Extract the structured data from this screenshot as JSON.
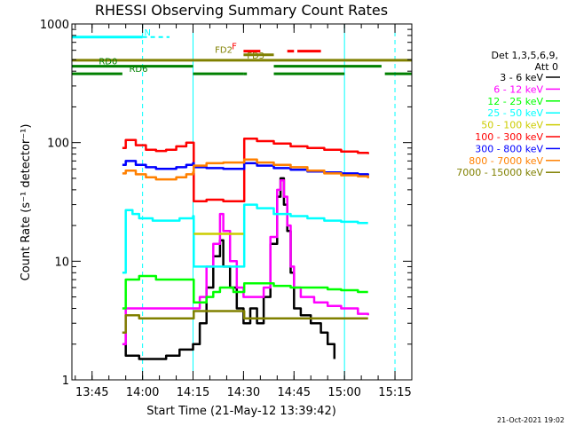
{
  "chart_data": {
    "type": "line",
    "title": "RHESSI Observing Summary Count Rates",
    "xlabel": "Start Time (21-May-12 13:39:42)",
    "ylabel": "Count Rate (s⁻¹ detector⁻¹)",
    "y_scale": "log",
    "ylim": [
      1,
      1000
    ],
    "xlim_minutes_after_1339": [
      0,
      101
    ],
    "x_ticks": [
      {
        "label": "13:45",
        "min": 6
      },
      {
        "label": "14:00",
        "min": 21
      },
      {
        "label": "14:15",
        "min": 36
      },
      {
        "label": "14:30",
        "min": 51
      },
      {
        "label": "14:45",
        "min": 66
      },
      {
        "label": "15:00",
        "min": 81
      },
      {
        "label": "15:15",
        "min": 96
      }
    ],
    "y_ticks": [
      {
        "label": "1",
        "value": 1
      },
      {
        "label": "10",
        "value": 10
      },
      {
        "label": "100",
        "value": 100
      },
      {
        "label": "1000",
        "value": 1000
      }
    ],
    "legend_title": [
      "Det 1,3,5,6,9,",
      "Att 0"
    ],
    "legend_placement": "right",
    "series": [
      {
        "name": "3 - 6 keV",
        "color": "#000000",
        "points": [
          [
            15,
            2.5
          ],
          [
            16,
            1.6
          ],
          [
            20,
            1.5
          ],
          [
            24,
            1.5
          ],
          [
            28,
            1.6
          ],
          [
            32,
            1.8
          ],
          [
            36,
            2.0
          ],
          [
            38,
            3
          ],
          [
            40,
            6
          ],
          [
            42,
            11
          ],
          [
            44,
            15
          ],
          [
            45,
            9
          ],
          [
            47,
            6
          ],
          [
            49,
            4
          ],
          [
            51,
            3
          ],
          [
            53,
            4
          ],
          [
            55,
            3
          ],
          [
            57,
            5
          ],
          [
            59,
            14
          ],
          [
            61,
            35
          ],
          [
            62,
            50
          ],
          [
            63,
            30
          ],
          [
            64,
            18
          ],
          [
            65,
            8
          ],
          [
            66,
            4
          ],
          [
            68,
            3.5
          ],
          [
            71,
            3
          ],
          [
            74,
            2.5
          ],
          [
            76,
            2
          ],
          [
            78,
            1.5
          ]
        ]
      },
      {
        "name": "6 - 12 keV",
        "color": "#ff00ff",
        "points": [
          [
            15,
            2.0
          ],
          [
            16,
            4.0
          ],
          [
            20,
            4.0
          ],
          [
            25,
            4.0
          ],
          [
            30,
            4.0
          ],
          [
            34,
            4.0
          ],
          [
            36,
            4.0
          ],
          [
            38,
            5
          ],
          [
            40,
            9
          ],
          [
            42,
            14
          ],
          [
            44,
            25
          ],
          [
            45,
            18
          ],
          [
            47,
            10
          ],
          [
            49,
            6
          ],
          [
            51,
            5
          ],
          [
            53,
            5
          ],
          [
            55,
            5
          ],
          [
            57,
            6
          ],
          [
            59,
            16
          ],
          [
            61,
            40
          ],
          [
            62,
            48
          ],
          [
            63,
            35
          ],
          [
            64,
            20
          ],
          [
            65,
            9
          ],
          [
            66,
            6
          ],
          [
            68,
            5
          ],
          [
            72,
            4.5
          ],
          [
            76,
            4.2
          ],
          [
            80,
            4.0
          ],
          [
            85,
            3.6
          ],
          [
            88,
            3.5
          ]
        ]
      },
      {
        "name": "12 - 25 keV",
        "color": "#00ff00",
        "points": [
          [
            15,
            4.0
          ],
          [
            16,
            7.0
          ],
          [
            20,
            7.5
          ],
          [
            25,
            7.0
          ],
          [
            30,
            7.0
          ],
          [
            36,
            7.0
          ],
          [
            36.2,
            4.5
          ],
          [
            40,
            5
          ],
          [
            42,
            5.5
          ],
          [
            44,
            6.0
          ],
          [
            48,
            5.5
          ],
          [
            51,
            5.5
          ],
          [
            51.2,
            6.5
          ],
          [
            55,
            6.5
          ],
          [
            60,
            6.2
          ],
          [
            65,
            6
          ],
          [
            70,
            6
          ],
          [
            76,
            5.8
          ],
          [
            80,
            5.7
          ],
          [
            85,
            5.5
          ],
          [
            88,
            5.5
          ]
        ]
      },
      {
        "name": "25 - 50 keV",
        "color": "#00ffff",
        "points": [
          [
            15,
            8
          ],
          [
            16,
            27
          ],
          [
            18,
            25
          ],
          [
            20,
            23
          ],
          [
            24,
            22
          ],
          [
            28,
            22
          ],
          [
            32,
            23
          ],
          [
            36,
            24
          ],
          [
            36.2,
            9
          ],
          [
            42,
            9
          ],
          [
            48,
            9
          ],
          [
            51,
            9
          ],
          [
            51.2,
            30
          ],
          [
            55,
            28
          ],
          [
            60,
            25
          ],
          [
            65,
            24
          ],
          [
            70,
            23
          ],
          [
            75,
            22
          ],
          [
            80,
            21.5
          ],
          [
            85,
            21
          ],
          [
            88,
            21
          ]
        ]
      },
      {
        "name": "50 - 100 keV",
        "color": "#cccc00",
        "points": [
          [
            36.2,
            17
          ],
          [
            40,
            17
          ],
          [
            45,
            17
          ],
          [
            51,
            17
          ]
        ]
      },
      {
        "name": "100 - 300 keV",
        "color": "#ff0000",
        "points": [
          [
            15,
            90
          ],
          [
            16,
            105
          ],
          [
            19,
            95
          ],
          [
            22,
            87
          ],
          [
            25,
            85
          ],
          [
            28,
            87
          ],
          [
            31,
            93
          ],
          [
            34,
            100
          ],
          [
            36,
            100
          ],
          [
            36.2,
            32
          ],
          [
            40,
            33
          ],
          [
            45,
            32
          ],
          [
            51,
            32
          ],
          [
            51.2,
            108
          ],
          [
            55,
            103
          ],
          [
            60,
            98
          ],
          [
            65,
            93
          ],
          [
            70,
            90
          ],
          [
            75,
            87
          ],
          [
            80,
            84
          ],
          [
            85,
            82
          ],
          [
            88,
            80
          ]
        ]
      },
      {
        "name": "300 - 800 keV",
        "color": "#0000ff",
        "points": [
          [
            15,
            65
          ],
          [
            16,
            70
          ],
          [
            19,
            65
          ],
          [
            22,
            62
          ],
          [
            25,
            60
          ],
          [
            28,
            60
          ],
          [
            31,
            62
          ],
          [
            34,
            65
          ],
          [
            36,
            67
          ],
          [
            36.2,
            62
          ],
          [
            40,
            61
          ],
          [
            45,
            60
          ],
          [
            51,
            60
          ],
          [
            51.2,
            67
          ],
          [
            55,
            64
          ],
          [
            60,
            61
          ],
          [
            65,
            59
          ],
          [
            70,
            57
          ],
          [
            75,
            56
          ],
          [
            80,
            55
          ],
          [
            85,
            54
          ],
          [
            88,
            53
          ]
        ]
      },
      {
        "name": "800 - 7000 keV",
        "color": "#ff8000",
        "points": [
          [
            15,
            55
          ],
          [
            16,
            58
          ],
          [
            19,
            54
          ],
          [
            22,
            51
          ],
          [
            25,
            49
          ],
          [
            28,
            49
          ],
          [
            31,
            51
          ],
          [
            34,
            54
          ],
          [
            36,
            56
          ],
          [
            36.2,
            64
          ],
          [
            40,
            67
          ],
          [
            45,
            68
          ],
          [
            51,
            68
          ],
          [
            51.2,
            72
          ],
          [
            55,
            68
          ],
          [
            60,
            65
          ],
          [
            65,
            62
          ],
          [
            70,
            58
          ],
          [
            75,
            55
          ],
          [
            80,
            53
          ],
          [
            85,
            52
          ],
          [
            88,
            50
          ]
        ]
      },
      {
        "name": "7000 - 15000 keV",
        "color": "#808000",
        "points": [
          [
            15,
            2.5
          ],
          [
            16,
            3.5
          ],
          [
            20,
            3.3
          ],
          [
            25,
            3.3
          ],
          [
            30,
            3.3
          ],
          [
            36,
            3.3
          ],
          [
            36.2,
            3.8
          ],
          [
            42,
            3.8
          ],
          [
            51,
            3.8
          ],
          [
            51.2,
            3.3
          ],
          [
            60,
            3.3
          ],
          [
            70,
            3.3
          ],
          [
            80,
            3.3
          ],
          [
            88,
            3.3
          ]
        ]
      }
    ],
    "flag_bars": [
      {
        "label": "N",
        "color": "#00ffff",
        "label_min": 21.5,
        "level": 775,
        "segments": [
          [
            0,
            21
          ]
        ],
        "dashed_line": [
          [
            21,
            29
          ]
        ]
      },
      {
        "label": "F",
        "color": "#ff0000",
        "label_min": 47.5,
        "level": 590,
        "segments": [
          [
            51,
            56
          ],
          [
            64,
            66
          ],
          [
            67,
            74
          ]
        ]
      },
      {
        "label": "FD2",
        "color": "#808000",
        "label_min": 42.5,
        "level": 550,
        "segments": [
          [
            51,
            60
          ]
        ]
      },
      {
        "label": "FD3",
        "color": "#808000",
        "label_min": 52,
        "level": 495,
        "segments": [
          [
            0,
            101
          ]
        ]
      },
      {
        "label": "RD0",
        "color": "#008000",
        "label_min": 8,
        "level": 440,
        "segments": [
          [
            0,
            36
          ],
          [
            60,
            92
          ]
        ]
      },
      {
        "label": "RD6",
        "color": "#008000",
        "label_min": 17,
        "level": 380,
        "segments": [
          [
            0,
            15
          ],
          [
            36,
            51
          ],
          [
            51,
            52
          ],
          [
            60,
            81
          ],
          [
            93,
            101
          ]
        ]
      }
    ],
    "vertical_lines": [
      {
        "min": 0,
        "color": "#00ffff",
        "style": "solid"
      },
      {
        "min": 21,
        "color": "#00ffff",
        "style": "dashed"
      },
      {
        "min": 36,
        "color": "#00ffff",
        "style": "solid"
      },
      {
        "min": 81,
        "color": "#00ffff",
        "style": "solid"
      },
      {
        "min": 96,
        "color": "#00ffff",
        "style": "dashed"
      }
    ],
    "footer_timestamp": "21-Oct-2021 19:02"
  }
}
